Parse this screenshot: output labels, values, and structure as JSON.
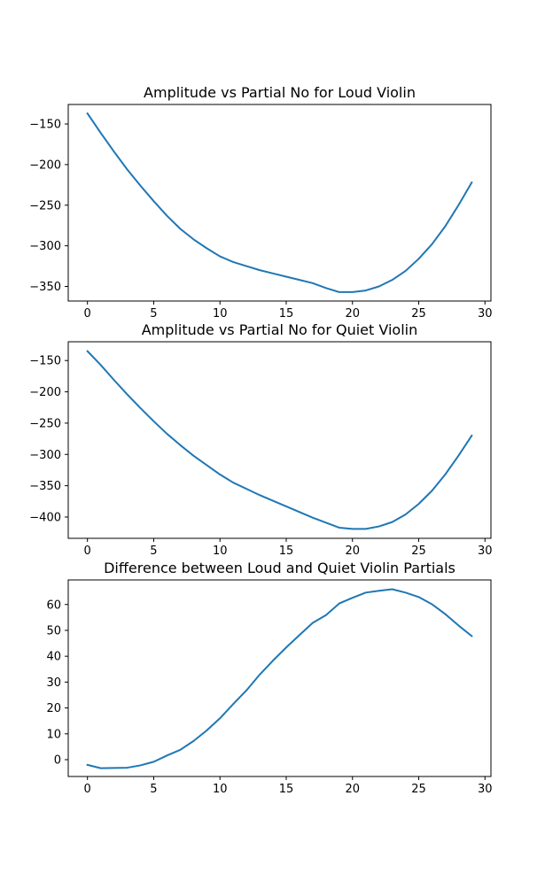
{
  "colors": {
    "series": "#1f77b4",
    "frame": "#000000",
    "background": "#ffffff"
  },
  "chart_data": [
    {
      "type": "line",
      "title": "Amplitude vs Partial No for Loud Violin",
      "xlabel": "",
      "ylabel": "",
      "xlim": [
        -1.45,
        30.45
      ],
      "ylim": [
        -368,
        -126
      ],
      "xticks": [
        0,
        5,
        10,
        15,
        20,
        25,
        30
      ],
      "yticks": [
        -150,
        -200,
        -250,
        -300,
        -350
      ],
      "grid": false,
      "x": [
        0,
        1,
        2,
        3,
        4,
        5,
        6,
        7,
        8,
        9,
        10,
        11,
        12,
        13,
        14,
        15,
        16,
        17,
        18,
        19,
        20,
        21,
        22,
        23,
        24,
        25,
        26,
        27,
        28,
        29
      ],
      "series": [
        {
          "values": [
            -137,
            -161,
            -184,
            -206,
            -226,
            -245,
            -263,
            -279,
            -292,
            -303,
            -313,
            -320,
            -325,
            -330,
            -334,
            -338,
            -342,
            -346,
            -352,
            -357,
            -357,
            -355,
            -350,
            -342,
            -331,
            -316,
            -298,
            -276,
            -250,
            -222
          ]
        }
      ]
    },
    {
      "type": "line",
      "title": "Amplitude vs Partial No for Quiet Violin",
      "xlabel": "",
      "ylabel": "",
      "xlim": [
        -1.45,
        30.45
      ],
      "ylim": [
        -434,
        -120
      ],
      "xticks": [
        0,
        5,
        10,
        15,
        20,
        25,
        30
      ],
      "yticks": [
        -150,
        -200,
        -250,
        -300,
        -350,
        -400
      ],
      "grid": false,
      "x": [
        0,
        1,
        2,
        3,
        4,
        5,
        6,
        7,
        8,
        9,
        10,
        11,
        12,
        13,
        14,
        15,
        16,
        17,
        18,
        19,
        20,
        21,
        22,
        23,
        24,
        25,
        26,
        27,
        28,
        29
      ],
      "series": [
        {
          "values": [
            -135,
            -157,
            -181,
            -204,
            -226,
            -247,
            -267,
            -285,
            -302,
            -317,
            -332,
            -345,
            -355,
            -365,
            -374,
            -383,
            -392,
            -401,
            -409,
            -417,
            -419,
            -419,
            -415,
            -408,
            -396,
            -379,
            -358,
            -332,
            -302,
            -270
          ]
        }
      ]
    },
    {
      "type": "line",
      "title": "Difference between Loud and Quiet Violin Partials",
      "xlabel": "",
      "ylabel": "",
      "xlim": [
        -1.45,
        30.45
      ],
      "ylim": [
        -6.5,
        69.5
      ],
      "xticks": [
        0,
        5,
        10,
        15,
        20,
        25,
        30
      ],
      "yticks": [
        0,
        10,
        20,
        30,
        40,
        50,
        60
      ],
      "grid": false,
      "x": [
        0,
        1,
        2,
        3,
        4,
        5,
        6,
        7,
        8,
        9,
        10,
        11,
        12,
        13,
        14,
        15,
        16,
        17,
        18,
        19,
        20,
        21,
        22,
        23,
        24,
        25,
        26,
        27,
        28,
        29
      ],
      "series": [
        {
          "values": [
            -2,
            -3.3,
            -3.2,
            -3.1,
            -2.2,
            -0.8,
            1.6,
            3.8,
            7.2,
            11.3,
            16,
            21.5,
            26.8,
            32.9,
            38.3,
            43.4,
            48.2,
            52.9,
            55.9,
            60.4,
            62.6,
            64.6,
            65.3,
            65.9,
            64.6,
            62.9,
            60.1,
            56.3,
            51.9,
            47.8
          ]
        }
      ]
    }
  ]
}
